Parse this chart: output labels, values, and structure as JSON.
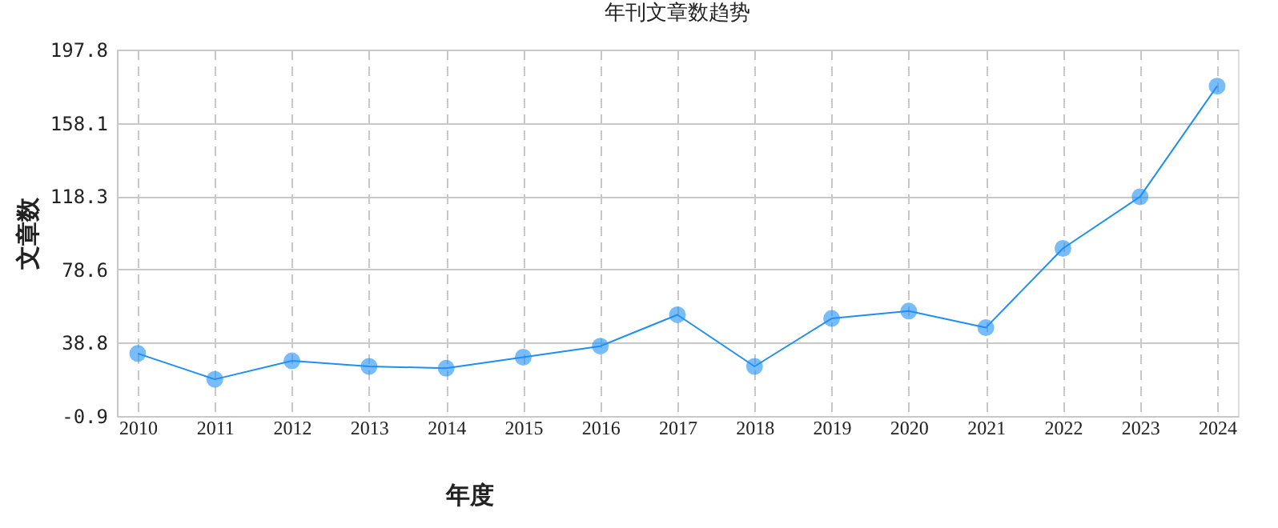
{
  "chart_data": {
    "type": "line",
    "title": "年刊文章数趋势",
    "xlabel": "年度",
    "ylabel": "文章数",
    "categories": [
      "2010",
      "2011",
      "2012",
      "2013",
      "2014",
      "2015",
      "2016",
      "2017",
      "2018",
      "2019",
      "2020",
      "2021",
      "2022",
      "2023",
      "2024"
    ],
    "series": [
      {
        "color": "#1e8ff5",
        "values": [
          33,
          19,
          29,
          26,
          25,
          31,
          37,
          54,
          26,
          52,
          56,
          47,
          90,
          118,
          178
        ]
      }
    ],
    "ylim": [
      -0.9,
      197.8
    ],
    "yticks": [
      -0.9,
      38.8,
      78.6,
      118.3,
      158.1,
      197.8
    ],
    "grid": true,
    "marker": "circle",
    "line_style": "solid",
    "legend": false
  }
}
